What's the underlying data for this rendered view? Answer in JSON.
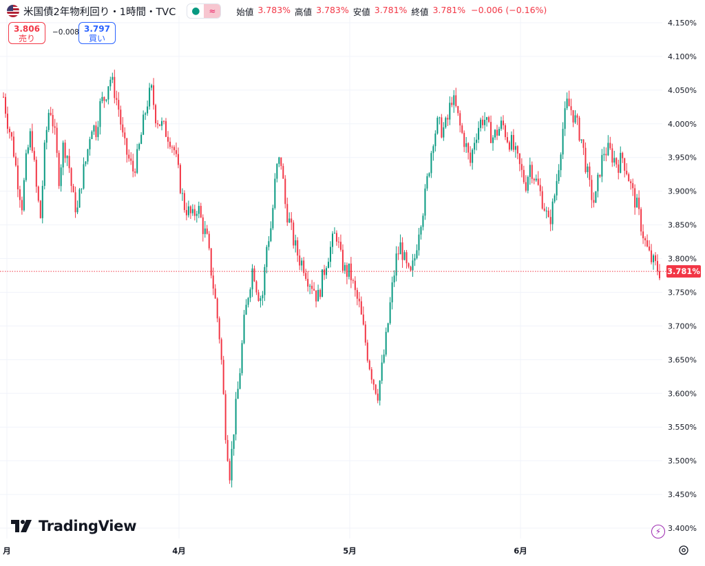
{
  "header": {
    "title": "米国債2年物利回り・1時間・TVC",
    "ohlc": [
      {
        "label": "始値",
        "value": "3.783%"
      },
      {
        "label": "高値",
        "value": "3.783%"
      },
      {
        "label": "安値",
        "value": "3.781%"
      },
      {
        "label": "終値",
        "value": "3.781%"
      }
    ],
    "change": "−0.006 (−0.16%)"
  },
  "trade": {
    "sell_price": "3.806",
    "sell_label": "売り",
    "spread": "−0.008",
    "buy_price": "3.797",
    "buy_label": "買い"
  },
  "logo_text": "TradingView",
  "colors": {
    "up": "#089981",
    "down": "#f23645",
    "buy": "#2962ff",
    "grid": "#f0f3fa"
  },
  "chart_data": {
    "type": "line",
    "title": "米国債2年物利回り・1時間・TVC",
    "ylim": [
      3.4,
      4.15
    ],
    "y_ticks": [
      "4.150%",
      "4.100%",
      "4.050%",
      "4.000%",
      "3.950%",
      "3.900%",
      "3.850%",
      "3.800%",
      "3.750%",
      "3.700%",
      "3.650%",
      "3.600%",
      "3.550%",
      "3.500%",
      "3.450%",
      "3.400%"
    ],
    "x_ticks": [
      "月",
      "4月",
      "5月",
      "6月"
    ],
    "last_price": 3.781,
    "last_price_label": "3.781%",
    "series": [
      {
        "values": [
          4.04,
          4.0,
          3.97,
          3.92,
          3.88,
          3.95,
          3.99,
          3.91,
          3.86,
          3.97,
          4.03,
          3.99,
          3.92,
          3.97,
          3.95,
          3.89,
          3.87,
          3.92,
          3.95,
          4.0,
          3.99,
          4.03,
          4.04,
          4.07,
          4.05,
          4.02,
          3.97,
          3.95,
          3.93,
          3.95,
          3.99,
          4.03,
          4.05,
          4.01,
          4.0,
          3.99,
          3.98,
          3.96,
          3.92,
          3.88,
          3.87,
          3.86,
          3.88,
          3.85,
          3.83,
          3.78,
          3.73,
          3.67,
          3.55,
          3.48,
          3.56,
          3.62,
          3.7,
          3.75,
          3.79,
          3.75,
          3.74,
          3.82,
          3.85,
          3.93,
          3.95,
          3.88,
          3.85,
          3.82,
          3.8,
          3.79,
          3.77,
          3.76,
          3.74,
          3.77,
          3.8,
          3.82,
          3.84,
          3.8,
          3.78,
          3.78,
          3.75,
          3.73,
          3.69,
          3.65,
          3.62,
          3.6,
          3.64,
          3.69,
          3.75,
          3.8,
          3.82,
          3.79,
          3.77,
          3.8,
          3.85,
          3.88,
          3.93,
          3.98,
          4.0,
          3.99,
          4.0,
          4.04,
          4.02,
          3.99,
          3.97,
          3.94,
          3.98,
          4.0,
          4.01,
          3.99,
          3.98,
          3.99,
          4.0,
          3.98,
          3.97,
          3.95,
          3.93,
          3.91,
          3.94,
          3.92,
          3.9,
          3.88,
          3.85,
          3.88,
          3.93,
          3.99,
          4.03,
          4.02,
          4.0,
          3.98,
          3.94,
          3.9,
          3.88,
          3.93,
          3.96,
          3.96,
          3.95,
          3.94,
          3.95,
          3.93,
          3.9,
          3.88,
          3.85,
          3.82,
          3.8,
          3.79,
          3.781
        ]
      }
    ]
  }
}
